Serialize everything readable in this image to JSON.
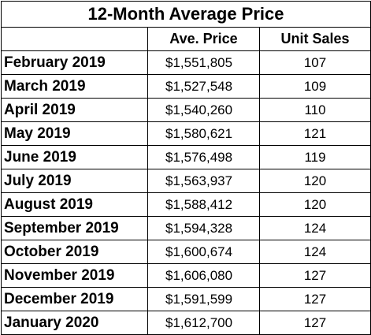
{
  "table": {
    "title": "12-Month Average Price",
    "headers": [
      "",
      "Ave. Price",
      "Unit Sales"
    ],
    "rows": [
      {
        "month": "February 2019",
        "price": "$1,551,805",
        "sales": "107"
      },
      {
        "month": "March 2019",
        "price": "$1,527,548",
        "sales": "109"
      },
      {
        "month": "April 2019",
        "price": "$1,540,260",
        "sales": "110"
      },
      {
        "month": "May 2019",
        "price": "$1,580,621",
        "sales": "121"
      },
      {
        "month": "June 2019",
        "price": "$1,576,498",
        "sales": "119"
      },
      {
        "month": "July 2019",
        "price": "$1,563,937",
        "sales": "120"
      },
      {
        "month": "August 2019",
        "price": "$1,588,412",
        "sales": "120"
      },
      {
        "month": "September 2019",
        "price": "$1,594,328",
        "sales": "124"
      },
      {
        "month": "October 2019",
        "price": "$1,600,674",
        "sales": "124"
      },
      {
        "month": "November 2019",
        "price": "$1,606,080",
        "sales": "127"
      },
      {
        "month": "December 2019",
        "price": "$1,591,599",
        "sales": "127"
      },
      {
        "month": "January 2020",
        "price": "$1,612,700",
        "sales": "127"
      }
    ]
  }
}
